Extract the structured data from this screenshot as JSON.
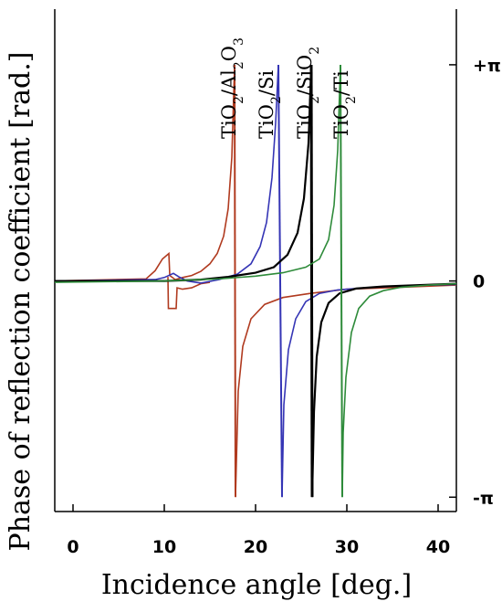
{
  "chart_data": {
    "type": "line",
    "title": "",
    "xlabel": "Incidence angle [deg.]",
    "ylabel": "Phase of reflection coefficient [rad.]",
    "xlim": [
      -2,
      42
    ],
    "ylim": [
      -3.35,
      3.95
    ],
    "x_ticks": [
      0,
      10,
      20,
      30,
      40
    ],
    "y_ticks": [
      {
        "value": 3.14159,
        "label": "+π"
      },
      {
        "value": 0,
        "label": "0"
      },
      {
        "value": -3.14159,
        "label": "-π"
      }
    ],
    "grid": false,
    "legend": "none",
    "series": [
      {
        "name": "TiO2/Al2O3",
        "label_main": "TiO",
        "label_sub1": "2",
        "label_mid": "/Al",
        "label_sub2": "2",
        "label_mid2": "O",
        "label_sub3": "3",
        "color": "#b03a1f",
        "upper": [
          [
            -2,
            0
          ],
          [
            8,
            0.03
          ],
          [
            9,
            0.15
          ],
          [
            9.8,
            0.32
          ],
          [
            10.5,
            0.4
          ],
          [
            10.6,
            0.08
          ],
          [
            11.2,
            0.02
          ],
          [
            12,
            0.05
          ],
          [
            13,
            0.08
          ],
          [
            14,
            0.14
          ],
          [
            15,
            0.25
          ],
          [
            15.8,
            0.4
          ],
          [
            16.5,
            0.65
          ],
          [
            17,
            1.05
          ],
          [
            17.4,
            1.8
          ],
          [
            17.7,
            3.14
          ]
        ],
        "lower": [
          [
            42,
            -0.06
          ],
          [
            36,
            -0.09
          ],
          [
            30,
            -0.12
          ],
          [
            26,
            -0.18
          ],
          [
            23,
            -0.24
          ],
          [
            21,
            -0.34
          ],
          [
            19.5,
            -0.55
          ],
          [
            18.6,
            -0.95
          ],
          [
            18.1,
            -1.6
          ],
          [
            17.8,
            -3.14
          ]
        ],
        "dip": [
          [
            10.4,
            0.06
          ],
          [
            10.45,
            -0.4
          ],
          [
            11.3,
            -0.4
          ],
          [
            11.4,
            -0.1
          ],
          [
            12,
            -0.12
          ],
          [
            13,
            -0.1
          ],
          [
            14,
            -0.04
          ],
          [
            15,
            -0.02
          ]
        ]
      },
      {
        "name": "TiO2/Si",
        "label_main": "TiO",
        "label_sub1": "2",
        "label_mid": "/Si",
        "color": "#3535b5",
        "upper": [
          [
            -2,
            0
          ],
          [
            9,
            0.02
          ],
          [
            10,
            0.05
          ],
          [
            11,
            0.11
          ],
          [
            11.6,
            0.06
          ],
          [
            12.5,
            0
          ],
          [
            14,
            -0.03
          ],
          [
            16,
            0.02
          ],
          [
            18,
            0.1
          ],
          [
            19.5,
            0.25
          ],
          [
            20.5,
            0.5
          ],
          [
            21.2,
            0.85
          ],
          [
            21.8,
            1.5
          ],
          [
            22.2,
            2.3
          ],
          [
            22.5,
            3.14
          ]
        ],
        "lower": [
          [
            42,
            -0.05
          ],
          [
            36,
            -0.07
          ],
          [
            32,
            -0.1
          ],
          [
            29,
            -0.13
          ],
          [
            27,
            -0.18
          ],
          [
            25.5,
            -0.3
          ],
          [
            24.4,
            -0.55
          ],
          [
            23.6,
            -1.0
          ],
          [
            23.1,
            -1.8
          ],
          [
            22.9,
            -3.14
          ]
        ]
      },
      {
        "name": "TiO2/SiO2",
        "label_main": "TiO",
        "label_sub1": "2",
        "label_mid": "/SiO",
        "label_sub2": "2",
        "color": "#000000",
        "upper": [
          [
            -2,
            0
          ],
          [
            10,
            0
          ],
          [
            14,
            0.02
          ],
          [
            17,
            0.06
          ],
          [
            20,
            0.12
          ],
          [
            22,
            0.2
          ],
          [
            23.5,
            0.38
          ],
          [
            24.6,
            0.7
          ],
          [
            25.3,
            1.2
          ],
          [
            25.8,
            2.0
          ],
          [
            26.1,
            3.14
          ]
        ],
        "lower": [
          [
            42,
            -0.04
          ],
          [
            38,
            -0.06
          ],
          [
            34,
            -0.08
          ],
          [
            31,
            -0.11
          ],
          [
            29.2,
            -0.18
          ],
          [
            28,
            -0.32
          ],
          [
            27.2,
            -0.6
          ],
          [
            26.7,
            -1.1
          ],
          [
            26.4,
            -1.9
          ],
          [
            26.2,
            -3.14
          ]
        ]
      },
      {
        "name": "TiO2/Ti",
        "label_main": "TiO",
        "label_sub1": "2",
        "label_mid": "/Ti",
        "color": "#2e8b3a",
        "upper": [
          [
            -2,
            -0.02
          ],
          [
            10,
            0
          ],
          [
            16,
            0.03
          ],
          [
            20,
            0.07
          ],
          [
            23,
            0.12
          ],
          [
            25.5,
            0.2
          ],
          [
            27,
            0.32
          ],
          [
            28,
            0.6
          ],
          [
            28.6,
            1.1
          ],
          [
            29,
            1.9
          ],
          [
            29.3,
            3.14
          ]
        ],
        "lower": [
          [
            42,
            -0.04
          ],
          [
            39,
            -0.06
          ],
          [
            36,
            -0.09
          ],
          [
            34,
            -0.14
          ],
          [
            32.5,
            -0.22
          ],
          [
            31.3,
            -0.4
          ],
          [
            30.5,
            -0.75
          ],
          [
            29.9,
            -1.4
          ],
          [
            29.6,
            -2.2
          ],
          [
            29.5,
            -3.14
          ]
        ]
      }
    ]
  }
}
